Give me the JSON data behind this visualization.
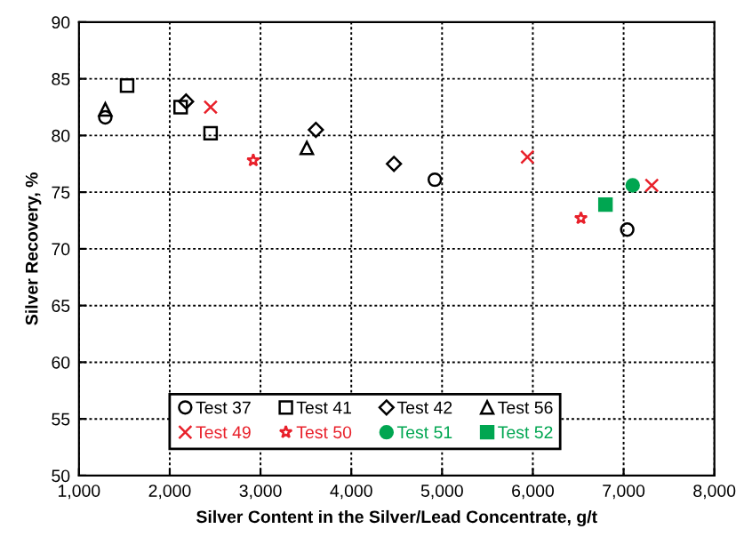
{
  "chart_data": {
    "type": "scatter",
    "xlabel": "Silver Content in the Silver/Lead Concentrate, g/t",
    "ylabel": "Silver Recovery, %",
    "xlim": [
      1000,
      8000
    ],
    "xticks": [
      {
        "value": 1000,
        "label": "1,000"
      },
      {
        "value": 2000,
        "label": "2,000"
      },
      {
        "value": 3000,
        "label": "3,000"
      },
      {
        "value": 4000,
        "label": "4,000"
      },
      {
        "value": 5000,
        "label": "5,000"
      },
      {
        "value": 6000,
        "label": "6,000"
      },
      {
        "value": 7000,
        "label": "7,000"
      },
      {
        "value": 8000,
        "label": "8,000"
      }
    ],
    "ylim": [
      50,
      90
    ],
    "yticks": [
      50,
      55,
      60,
      65,
      70,
      75,
      80,
      85,
      90
    ],
    "grid": true,
    "legend": "bottom",
    "series": [
      {
        "name": "Test 37",
        "color": "#000000",
        "marker": "circle",
        "x": [
          1290,
          4920,
          7040
        ],
        "values": [
          81.6,
          76.1,
          71.7
        ]
      },
      {
        "name": "Test 41",
        "color": "#000000",
        "marker": "square",
        "x": [
          1530,
          2120,
          2450
        ],
        "values": [
          84.4,
          82.5,
          80.2
        ]
      },
      {
        "name": "Test 42",
        "color": "#000000",
        "marker": "diamond",
        "x": [
          2180,
          3610,
          4470
        ],
        "values": [
          83.0,
          80.5,
          77.5
        ]
      },
      {
        "name": "Test 56",
        "color": "#000000",
        "marker": "triangle",
        "x": [
          1290,
          3510
        ],
        "values": [
          82.3,
          78.9
        ]
      },
      {
        "name": "Test 49",
        "color": "#e8202a",
        "marker": "cross",
        "x": [
          2450,
          5940,
          7310
        ],
        "values": [
          82.5,
          78.1,
          75.6
        ]
      },
      {
        "name": "Test 50",
        "color": "#e8202a",
        "marker": "star",
        "x": [
          2920,
          6530
        ],
        "values": [
          77.8,
          72.7
        ]
      },
      {
        "name": "Test 51",
        "color": "#00a651",
        "marker": "circle",
        "x": [
          7100
        ],
        "values": [
          75.6
        ]
      },
      {
        "name": "Test 52",
        "color": "#00a651",
        "marker": "square",
        "x": [
          6800
        ],
        "values": [
          73.9
        ]
      }
    ]
  }
}
